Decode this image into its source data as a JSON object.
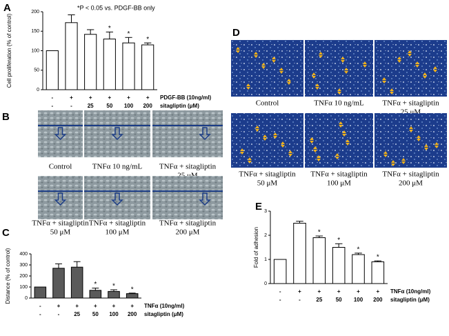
{
  "chart_data": [
    {
      "type": "bar",
      "panel": "A",
      "annotation": "*P  < 0.05 vs. PDGF-BB only",
      "y_label": "Cell proliferation (% of control)",
      "ylim": [
        0,
        200
      ],
      "yticks": [
        0,
        50,
        100,
        150,
        200
      ],
      "color": "#ffffff",
      "values": [
        100,
        172,
        142,
        130,
        120,
        115
      ],
      "errors": [
        null,
        20,
        12,
        18,
        14,
        5
      ],
      "significance": [
        null,
        null,
        null,
        "*",
        "*",
        "*"
      ],
      "label_rows": [
        {
          "label": "PDGF-BB (10ng/ml)",
          "values": [
            "-",
            "+",
            "+",
            "+",
            "+",
            "+"
          ]
        },
        {
          "label": "sitagliptin (μM)",
          "values": [
            "-",
            "-",
            "25",
            "50",
            "100",
            "200"
          ]
        }
      ]
    },
    {
      "type": "bar",
      "panel": "C",
      "y_label": "Distance (% of control)",
      "ylim": [
        0,
        400
      ],
      "yticks": [
        0,
        100,
        200,
        300,
        400
      ],
      "color": "#5a5a5a",
      "values": [
        100,
        270,
        280,
        70,
        60,
        40
      ],
      "errors": [
        null,
        40,
        50,
        20,
        15,
        5
      ],
      "significance": [
        null,
        null,
        null,
        "*",
        "*",
        "*"
      ],
      "label_rows": [
        {
          "label": "TNFα (10ng/ml)",
          "values": [
            "-",
            "+",
            "+",
            "+",
            "+",
            "+"
          ]
        },
        {
          "label": "sitagliptin (μM)",
          "values": [
            "-",
            "-",
            "25",
            "50",
            "100",
            "200"
          ]
        }
      ]
    },
    {
      "type": "bar",
      "panel": "E",
      "y_label": "Fold of adhesion",
      "ylim": [
        0,
        3
      ],
      "yticks": [
        0,
        1,
        2,
        3
      ],
      "color": "#ffffff",
      "values": [
        1.0,
        2.5,
        1.9,
        1.5,
        1.2,
        0.9
      ],
      "errors": [
        null,
        0.08,
        0.07,
        0.15,
        0.06,
        0.04
      ],
      "significance": [
        null,
        null,
        "*",
        "*",
        "*",
        "*"
      ],
      "label_rows": [
        {
          "label": "TNFα (10ng/ml)",
          "values": [
            "-",
            "+",
            "+",
            "+",
            "+",
            "+"
          ]
        },
        {
          "label": "sitagliptin (μM)",
          "values": [
            "-",
            "-",
            "25",
            "50",
            "100",
            "200"
          ]
        }
      ]
    }
  ],
  "images": [
    {
      "panel": "B",
      "captions": [
        [
          "Control"
        ],
        [
          "TNFα 10 ng/mL"
        ],
        [
          "TNFα + sitagliptin",
          "25 μM"
        ],
        [
          "TNFα + sitagliptin",
          "50 μM"
        ],
        [
          "TNFα + sitagliptin",
          "100 μM"
        ],
        [
          "TNFα + sitagliptin",
          "200 μM"
        ]
      ]
    },
    {
      "panel": "D",
      "captions": [
        [
          "Control"
        ],
        [
          "TNFα 10 ng/mL"
        ],
        [
          "TNFα + sitagliptin",
          "25 μM"
        ],
        [
          "TNFα + sitagliptin",
          "50 μM"
        ],
        [
          "TNFα + sitagliptin",
          "100 μM"
        ],
        [
          "TNFα + sitagliptin",
          "200 μM"
        ]
      ]
    }
  ]
}
